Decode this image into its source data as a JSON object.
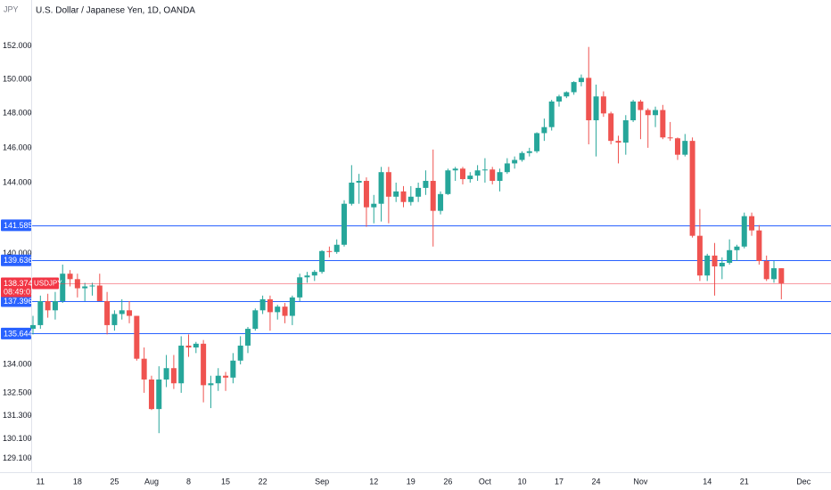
{
  "chart_data": {
    "type": "candlestick",
    "title": "U.S. Dollar / Japanese Yen, 1D, OANDA",
    "axis_label": "JPY",
    "symbol": "USDJPY",
    "countdown": "08:49:01",
    "log_scale": true,
    "up_color": "#26a69a",
    "down_color": "#ef5350",
    "last_color": "#f23645",
    "ylim": [
      128.4,
      154.8
    ],
    "yticks": [
      {
        "value": 152,
        "label": "152.000"
      },
      {
        "value": 150,
        "label": "150.000"
      },
      {
        "value": 148,
        "label": "148.000"
      },
      {
        "value": 146,
        "label": "146.000"
      },
      {
        "value": 144,
        "label": "144.000"
      },
      {
        "value": 140,
        "label": "140.000"
      },
      {
        "value": 134,
        "label": "134.000"
      },
      {
        "value": 132.5,
        "label": "132.500"
      },
      {
        "value": 131.3,
        "label": "131.300"
      },
      {
        "value": 130.1,
        "label": "130.100"
      },
      {
        "value": 129.1,
        "label": "129.100"
      }
    ],
    "price_lines": [
      {
        "value": 141.585,
        "color": "#2962ff"
      },
      {
        "value": 139.636,
        "color": "#2962ff"
      },
      {
        "value": 137.396,
        "color": "#2962ff"
      },
      {
        "value": 135.644,
        "color": "#2962ff"
      }
    ],
    "categories": [
      null,
      "11",
      null,
      null,
      null,
      null,
      "18",
      null,
      null,
      null,
      null,
      "25",
      null,
      null,
      null,
      null,
      "Aug",
      null,
      null,
      null,
      null,
      "8",
      null,
      null,
      null,
      null,
      "15",
      null,
      null,
      null,
      null,
      "22",
      null,
      null,
      null,
      null,
      null,
      null,
      null,
      "Sep",
      null,
      null,
      null,
      null,
      null,
      null,
      "12",
      null,
      null,
      null,
      null,
      "19",
      null,
      null,
      null,
      null,
      "26",
      null,
      null,
      null,
      null,
      "Oct",
      null,
      null,
      null,
      null,
      "10",
      null,
      null,
      null,
      null,
      "17",
      null,
      null,
      null,
      null,
      "24",
      null,
      null,
      null,
      null,
      null,
      "Nov",
      null,
      null,
      null,
      null,
      null,
      null,
      null,
      null,
      "14",
      null,
      null,
      null,
      null,
      "21",
      null,
      null,
      null,
      null,
      null,
      null,
      null,
      "Dec"
    ],
    "open": [
      135.9,
      136.1,
      137.4,
      136.9,
      137.4,
      138.9,
      138.6,
      138.1,
      138.2,
      138.25,
      137.4,
      136.1,
      136.7,
      136.9,
      136.6,
      134.3,
      133.2,
      131.65,
      133.2,
      133.8,
      133.0,
      135.0,
      134.9,
      135.1,
      132.9,
      133.0,
      133.4,
      133.3,
      134.2,
      135.0,
      135.9,
      136.9,
      137.5,
      136.8,
      137.1,
      136.6,
      137.6,
      138.7,
      138.8,
      139.0,
      140.15,
      140.1,
      140.5,
      142.8,
      144.0,
      144.1,
      142.6,
      142.8,
      144.6,
      143.2,
      143.5,
      142.9,
      143.2,
      143.7,
      144.1,
      142.4,
      143.35,
      144.7,
      144.8,
      144.2,
      144.4,
      144.7,
      144.75,
      144.1,
      144.6,
      145.1,
      145.3,
      145.7,
      145.8,
      146.85,
      147.2,
      148.7,
      149.0,
      149.25,
      149.85,
      150.1,
      147.6,
      149.0,
      148.0,
      146.4,
      146.3,
      147.6,
      148.7,
      148.2,
      147.9,
      148.2,
      146.6,
      146.55,
      145.6,
      146.4,
      141.0,
      138.8,
      139.9,
      139.3,
      139.5,
      140.2,
      140.4,
      142.1,
      141.3,
      139.6,
      138.6,
      139.2,
      null,
      null,
      null
    ],
    "high": [
      136.6,
      137.7,
      137.8,
      137.9,
      139.4,
      139.1,
      138.9,
      138.4,
      138.4,
      138.9,
      137.9,
      136.9,
      137.5,
      137.4,
      136.6,
      134.9,
      133.4,
      133.9,
      134.5,
      134.5,
      135.5,
      135.6,
      135.2,
      135.3,
      133.4,
      133.8,
      133.6,
      134.6,
      135.5,
      136.0,
      137.0,
      137.7,
      137.7,
      137.2,
      137.3,
      137.7,
      138.9,
      139.0,
      139.1,
      140.2,
      140.4,
      140.8,
      143.0,
      145.0,
      144.5,
      144.3,
      143.3,
      144.9,
      144.9,
      144.0,
      143.8,
      143.8,
      144.0,
      144.7,
      145.9,
      143.5,
      144.8,
      144.9,
      144.9,
      144.6,
      145.0,
      145.4,
      144.9,
      144.8,
      145.4,
      145.5,
      145.8,
      146.0,
      146.9,
      147.7,
      148.8,
      149.1,
      149.3,
      149.9,
      150.3,
      151.95,
      149.7,
      149.3,
      148.1,
      146.7,
      147.9,
      148.8,
      148.8,
      148.3,
      148.4,
      148.5,
      147.5,
      146.6,
      146.8,
      146.6,
      142.5,
      140.0,
      140.6,
      139.8,
      140.8,
      140.5,
      142.3,
      142.3,
      141.6,
      139.9,
      139.6,
      139.2,
      null,
      null,
      null
    ],
    "low": [
      135.6,
      135.9,
      136.5,
      136.4,
      137.3,
      138.2,
      137.6,
      137.4,
      137.7,
      137.4,
      135.6,
      135.8,
      136.4,
      136.2,
      134.2,
      132.5,
      131.6,
      130.4,
      132.8,
      132.7,
      132.5,
      134.4,
      134.6,
      132.0,
      131.7,
      132.6,
      132.6,
      133.0,
      134.0,
      134.6,
      135.8,
      136.7,
      135.8,
      136.4,
      136.2,
      136.1,
      137.4,
      138.4,
      138.5,
      138.9,
      139.8,
      140.0,
      140.4,
      142.7,
      142.8,
      141.5,
      141.7,
      141.8,
      141.7,
      142.9,
      142.6,
      142.7,
      142.9,
      143.3,
      140.4,
      142.2,
      143.3,
      144.1,
      143.9,
      144.0,
      144.1,
      144.0,
      143.9,
      143.5,
      144.5,
      144.8,
      145.2,
      145.5,
      145.7,
      146.4,
      147.0,
      148.4,
      148.9,
      149.1,
      149.6,
      146.2,
      145.5,
      147.8,
      146.2,
      145.1,
      145.6,
      147.5,
      146.5,
      146.0,
      147.2,
      146.5,
      146.4,
      145.3,
      145.5,
      140.9,
      138.5,
      138.5,
      137.7,
      138.6,
      139.4,
      139.6,
      140.3,
      141.0,
      139.4,
      138.5,
      138.4,
      137.5,
      null,
      null,
      null
    ],
    "close": [
      136.1,
      137.4,
      136.9,
      137.4,
      138.9,
      138.6,
      138.1,
      138.2,
      138.25,
      137.4,
      136.1,
      136.7,
      136.9,
      136.6,
      134.3,
      133.2,
      131.65,
      133.2,
      133.8,
      133.0,
      135.0,
      134.9,
      135.1,
      132.9,
      133.0,
      133.4,
      133.3,
      134.2,
      135.0,
      135.9,
      136.9,
      137.5,
      136.8,
      137.1,
      136.6,
      137.6,
      138.7,
      138.8,
      139.0,
      140.15,
      140.1,
      140.5,
      142.8,
      144.0,
      144.1,
      142.6,
      142.8,
      144.6,
      143.2,
      143.5,
      142.9,
      143.2,
      143.7,
      144.1,
      142.4,
      143.35,
      144.7,
      144.8,
      144.2,
      144.4,
      144.7,
      144.75,
      144.1,
      144.6,
      145.1,
      145.3,
      145.7,
      145.8,
      146.85,
      147.2,
      148.7,
      149.0,
      149.25,
      149.85,
      150.1,
      147.6,
      149.0,
      148.0,
      146.4,
      146.3,
      147.6,
      148.7,
      148.2,
      147.9,
      148.2,
      146.6,
      146.55,
      145.6,
      146.4,
      141.0,
      138.8,
      139.9,
      139.3,
      139.5,
      140.2,
      140.4,
      142.1,
      141.3,
      139.6,
      138.6,
      139.2,
      138.374,
      null,
      null,
      null
    ]
  }
}
